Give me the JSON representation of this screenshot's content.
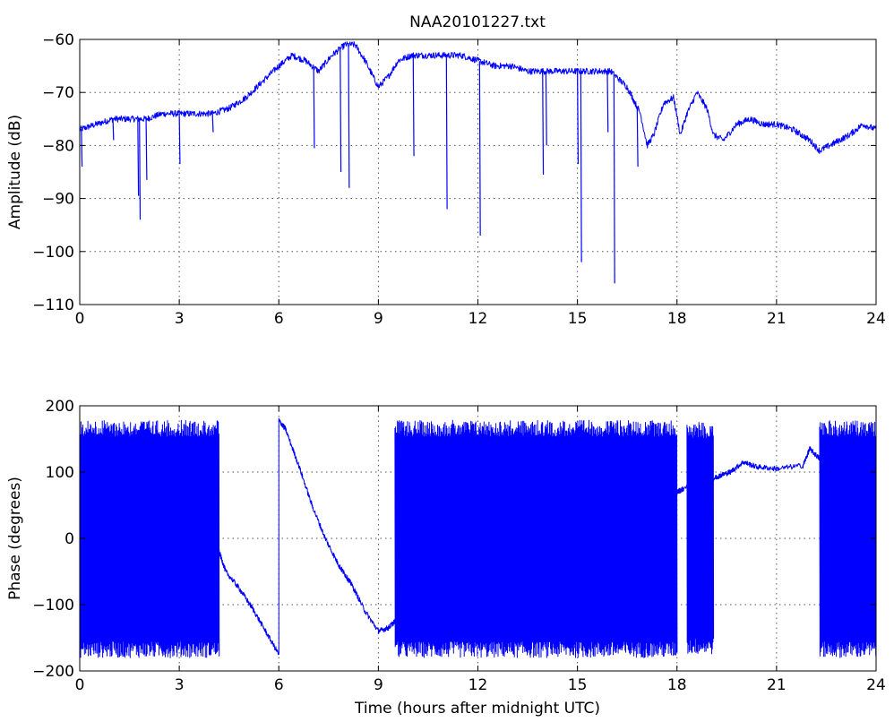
{
  "figure": {
    "title": "NAA20101227.txt"
  },
  "chart_data": [
    {
      "type": "line",
      "title": "NAA20101227.txt",
      "xlabel": "",
      "ylabel": "Amplitude (dB)",
      "xlim": [
        0,
        24
      ],
      "ylim": [
        -110,
        -60
      ],
      "xticks": [
        0,
        3,
        6,
        9,
        12,
        15,
        18,
        21,
        24
      ],
      "yticks": [
        -110,
        -100,
        -90,
        -80,
        -70,
        -60
      ],
      "xtick_labels": [
        "0",
        "3",
        "6",
        "9",
        "12",
        "15",
        "18",
        "21",
        "24"
      ],
      "ytick_labels": [
        "−110",
        "−100",
        "−90",
        "−80",
        "−70",
        "−60"
      ],
      "grid": true,
      "color": "#0000ff",
      "baseline": {
        "x": [
          0,
          0.5,
          1.0,
          1.5,
          2.0,
          2.5,
          3.0,
          3.5,
          4.0,
          4.5,
          5.0,
          5.5,
          6.0,
          6.4,
          6.8,
          7.2,
          7.6,
          8.0,
          8.3,
          8.6,
          9.0,
          9.3,
          9.6,
          10.0,
          10.5,
          11.0,
          11.5,
          12.0,
          12.5,
          13.0,
          13.5,
          14.0,
          14.5,
          15.0,
          15.5,
          16.0,
          16.5,
          16.9,
          17.1,
          17.3,
          17.6,
          17.9,
          18.1,
          18.3,
          18.6,
          18.9,
          19.1,
          19.4,
          19.8,
          20.2,
          20.6,
          21.0,
          21.5,
          22.0,
          22.3,
          22.6,
          22.9,
          23.2,
          23.6,
          24.0
        ],
        "y": [
          -77,
          -76,
          -75,
          -75,
          -75,
          -74,
          -74,
          -74,
          -74,
          -73,
          -71,
          -68,
          -65,
          -63,
          -64,
          -66,
          -63,
          -61,
          -61,
          -64,
          -69,
          -67,
          -64,
          -63,
          -63,
          -63,
          -63,
          -64,
          -65,
          -65,
          -66,
          -66,
          -66,
          -66,
          -66,
          -66,
          -69,
          -74,
          -80,
          -78,
          -72,
          -71,
          -78,
          -74,
          -70,
          -73,
          -78,
          -79,
          -76,
          -75,
          -76,
          -76,
          -77,
          -79,
          -81,
          -80,
          -79,
          -78,
          -76,
          -77
        ]
      },
      "spikes": [
        {
          "x": 0.05,
          "y": -84
        },
        {
          "x": 1.0,
          "y": -79
        },
        {
          "x": 1.75,
          "y": -89.5
        },
        {
          "x": 1.8,
          "y": -94
        },
        {
          "x": 2.0,
          "y": -86.5
        },
        {
          "x": 3.0,
          "y": -83.5
        },
        {
          "x": 4.0,
          "y": -77.5
        },
        {
          "x": 7.05,
          "y": -80.5
        },
        {
          "x": 7.85,
          "y": -85
        },
        {
          "x": 8.1,
          "y": -88
        },
        {
          "x": 10.05,
          "y": -82
        },
        {
          "x": 11.05,
          "y": -92
        },
        {
          "x": 12.05,
          "y": -97
        },
        {
          "x": 13.95,
          "y": -85.5
        },
        {
          "x": 14.05,
          "y": -80
        },
        {
          "x": 15.0,
          "y": -83.5
        },
        {
          "x": 15.1,
          "y": -102
        },
        {
          "x": 15.9,
          "y": -77.5
        },
        {
          "x": 16.1,
          "y": -106
        },
        {
          "x": 16.8,
          "y": -84
        }
      ]
    },
    {
      "type": "line",
      "title": "",
      "xlabel": "Time (hours after midnight UTC)",
      "ylabel": "Phase (degrees)",
      "xlim": [
        0,
        24
      ],
      "ylim": [
        -200,
        200
      ],
      "xticks": [
        0,
        3,
        6,
        9,
        12,
        15,
        18,
        21,
        24
      ],
      "yticks": [
        -200,
        -100,
        0,
        100,
        200
      ],
      "xtick_labels": [
        "0",
        "3",
        "6",
        "9",
        "12",
        "15",
        "18",
        "21",
        "24"
      ],
      "ytick_labels": [
        "−200",
        "−100",
        "0",
        "100",
        "200"
      ],
      "grid": true,
      "color": "#0000ff",
      "wrapping_regions": [
        {
          "x_range": [
            0,
            4.2
          ],
          "y_range": [
            -180,
            178
          ]
        },
        {
          "x_range": [
            9.5,
            13.1
          ],
          "y_range": [
            -180,
            178
          ]
        },
        {
          "x_range": [
            13.1,
            18.0
          ],
          "y_range": [
            -180,
            178
          ]
        },
        {
          "x_range": [
            18.3,
            19.1
          ],
          "y_range": [
            -175,
            175
          ]
        },
        {
          "x_range": [
            22.3,
            24.0
          ],
          "y_range": [
            -180,
            178
          ]
        }
      ],
      "trend": {
        "x": [
          4.2,
          4.4,
          4.8,
          5.2,
          5.6,
          6.0,
          6.0,
          6.2,
          6.6,
          7.0,
          7.4,
          7.8,
          8.0,
          8.2,
          8.6,
          9.0,
          9.3,
          9.5
        ],
        "y": [
          -20,
          -50,
          -75,
          -105,
          -140,
          -175,
          178,
          165,
          110,
          50,
          0,
          -40,
          -55,
          -70,
          -110,
          -140,
          -135,
          -125
        ]
      },
      "trend2": {
        "x": [
          13.1,
          13.5,
          14.0,
          18.0,
          18.2,
          19.1,
          19.3,
          19.6,
          20.0,
          20.4,
          21.0,
          21.8,
          22.0,
          22.3
        ],
        "y": [
          50,
          45,
          40,
          70,
          75,
          90,
          95,
          100,
          115,
          108,
          105,
          110,
          135,
          120
        ]
      }
    }
  ]
}
